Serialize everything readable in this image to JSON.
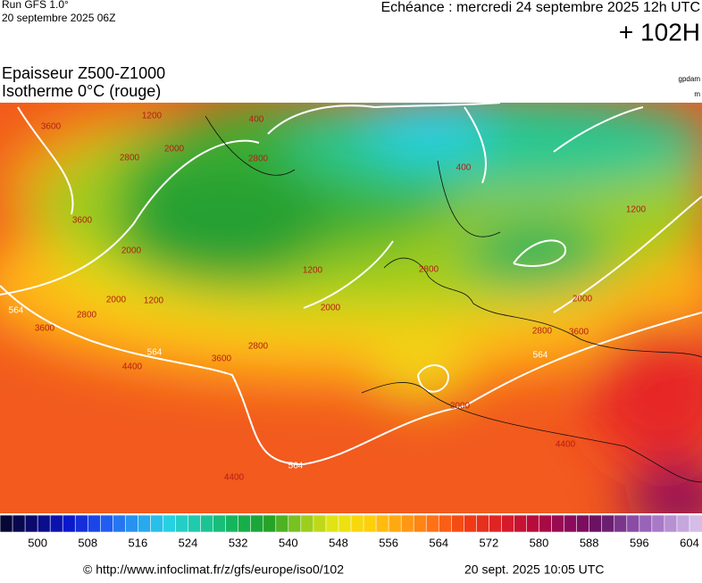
{
  "header": {
    "run": "Run GFS 1.0°",
    "run_date": "20 septembre 2025 06Z",
    "valid": "Echéance : mercredi 24 septembre 2025 12h UTC",
    "lead": "+ 102H",
    "title1": "Epaisseur Z500-Z1000",
    "title2": "Isotherme 0°C (rouge)",
    "unit1": "gpdam",
    "unit2": "m"
  },
  "map_labels": [
    "3600",
    "1200",
    "2000",
    "2800",
    "400",
    "2800",
    "3600",
    "2000",
    "2000",
    "2800",
    "1200",
    "564",
    "3600",
    "4400",
    "564",
    "2800",
    "3600",
    "400",
    "1200",
    "2000",
    "2800",
    "1200",
    "2000",
    "3600",
    "2800",
    "564",
    "4400",
    "564",
    "4400",
    "2000"
  ],
  "colorbar": {
    "lim": [
      494,
      606
    ],
    "ticks": [
      500,
      508,
      516,
      524,
      532,
      540,
      548,
      556,
      564,
      572,
      580,
      588,
      596,
      604
    ],
    "colors": [
      "#05052a",
      "#0a0a70",
      "#0a14c8",
      "#1e50f0",
      "#2896f0",
      "#28d2e6",
      "#1ec8a0",
      "#14b45a",
      "#1ea028",
      "#8cc81e",
      "#e6e614",
      "#ffd20a",
      "#ffa014",
      "#ff6e14",
      "#f03c14",
      "#dc1e28",
      "#b40a3c",
      "#8c0a5a",
      "#641464",
      "#8c50aa",
      "#b48cd2",
      "#dcc8ec"
    ]
  },
  "footer": {
    "url": "© http://www.infoclimat.fr/z/gfs/europe/iso0/102",
    "date": "20 sept. 2025 10:05 UTC"
  }
}
